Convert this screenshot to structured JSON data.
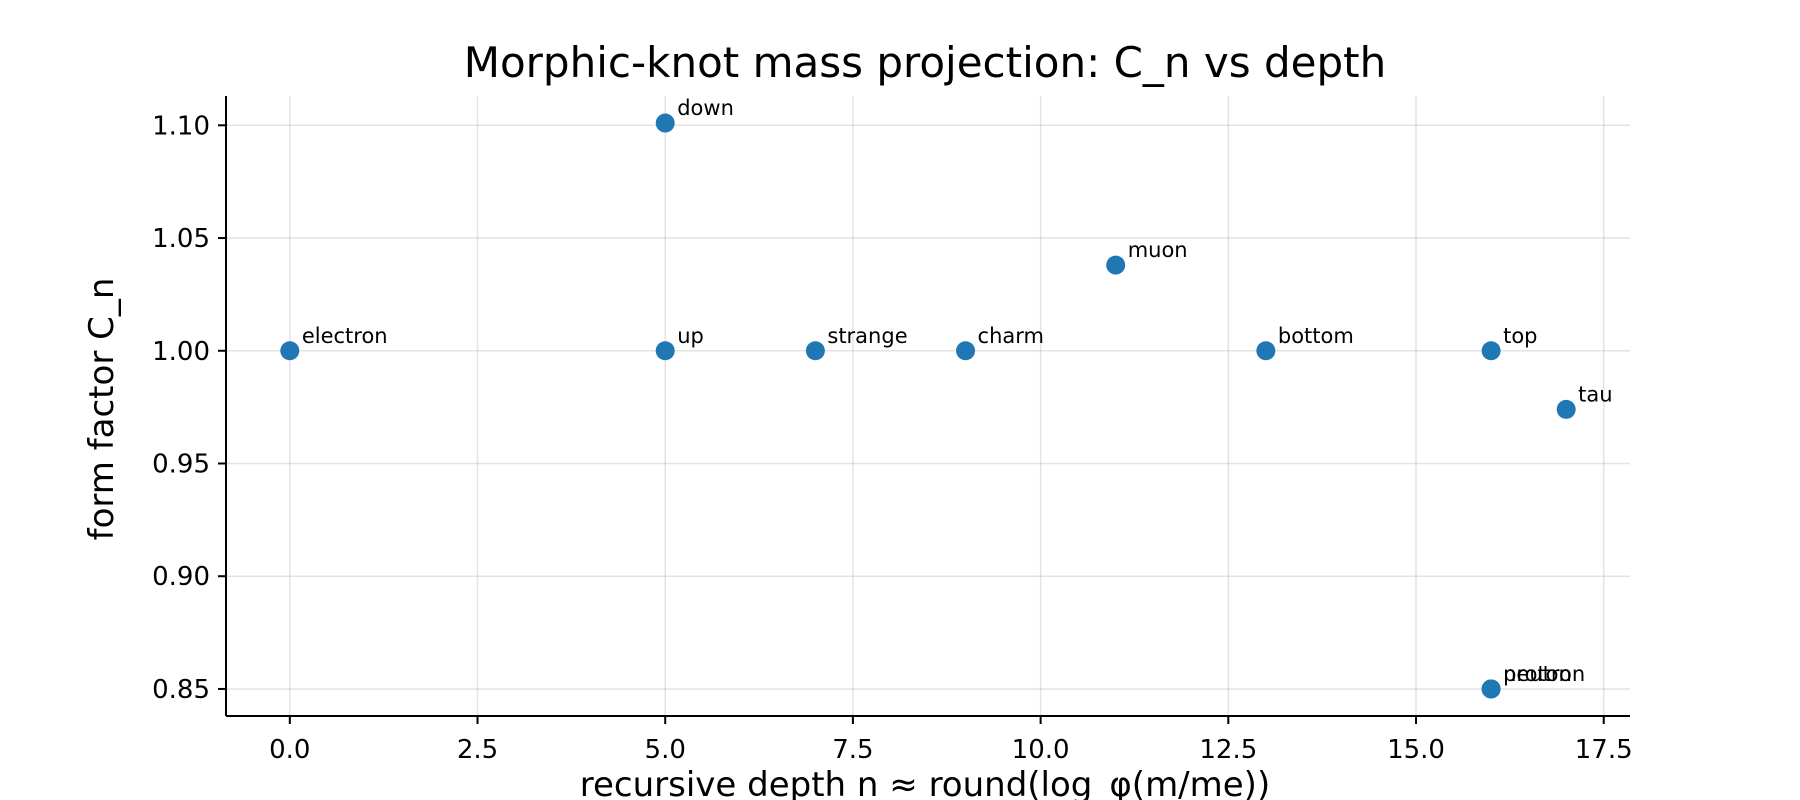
{
  "chart_data": {
    "type": "scatter",
    "title": "Morphic-knot mass projection: C_n vs depth",
    "xlabel": "recursive depth n ≈ round(log_φ(m/me))",
    "ylabel": "form factor C_n",
    "xlim": [
      -0.85,
      17.85
    ],
    "ylim": [
      0.838,
      1.113
    ],
    "x_ticks": [
      0.0,
      2.5,
      5.0,
      7.5,
      10.0,
      12.5,
      15.0,
      17.5
    ],
    "x_tick_labels": [
      "0.0",
      "2.5",
      "5.0",
      "7.5",
      "10.0",
      "12.5",
      "15.0",
      "17.5"
    ],
    "y_ticks": [
      0.85,
      0.9,
      0.95,
      1.0,
      1.05,
      1.1
    ],
    "y_tick_labels": [
      "0.85",
      "0.90",
      "0.95",
      "1.00",
      "1.05",
      "1.10"
    ],
    "grid": true,
    "marker_color": "#1f77b4",
    "points": [
      {
        "label": "electron",
        "x": 0,
        "y": 1.0
      },
      {
        "label": "up",
        "x": 5,
        "y": 1.0
      },
      {
        "label": "down",
        "x": 5,
        "y": 1.101
      },
      {
        "label": "strange",
        "x": 7,
        "y": 1.0
      },
      {
        "label": "charm",
        "x": 9,
        "y": 1.0
      },
      {
        "label": "muon",
        "x": 11,
        "y": 1.038
      },
      {
        "label": "bottom",
        "x": 13,
        "y": 1.0
      },
      {
        "label": "top",
        "x": 16,
        "y": 1.0
      },
      {
        "label": "tau",
        "x": 17,
        "y": 0.974
      },
      {
        "label": "proton",
        "x": 16,
        "y": 0.85
      },
      {
        "label": "neutron",
        "x": 16,
        "y": 0.85
      }
    ]
  }
}
